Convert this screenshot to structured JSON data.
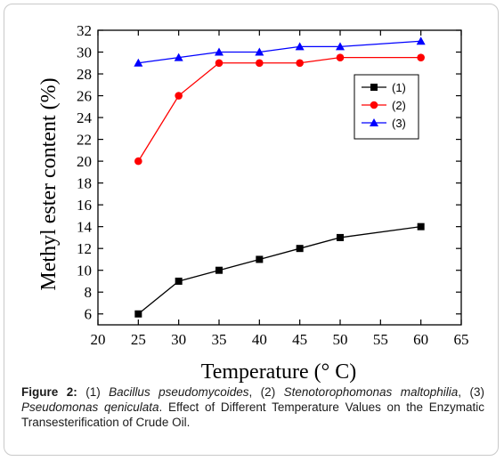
{
  "chart_data": {
    "type": "line",
    "xlabel": "Temperature (° C)",
    "ylabel": "Methyl ester content (%)",
    "xlim": [
      20,
      65
    ],
    "ylim": [
      5,
      32
    ],
    "xticks": [
      20,
      25,
      30,
      35,
      40,
      45,
      50,
      55,
      60,
      65
    ],
    "yticks": [
      6,
      8,
      10,
      12,
      14,
      16,
      18,
      20,
      22,
      24,
      26,
      28,
      30,
      32
    ],
    "grid": false,
    "legend_position": "top-right",
    "x": [
      25,
      30,
      35,
      40,
      45,
      50,
      60
    ],
    "series": [
      {
        "name": "(1)",
        "color": "#000000",
        "marker": "square",
        "values": [
          6,
          9,
          10,
          11,
          12,
          13,
          14
        ]
      },
      {
        "name": "(2)",
        "color": "#ff0000",
        "marker": "circle",
        "values": [
          20,
          26,
          29,
          29,
          29,
          29.5,
          29.5
        ]
      },
      {
        "name": "(3)",
        "color": "#0000ff",
        "marker": "triangle",
        "values": [
          29,
          29.5,
          30,
          30,
          30.5,
          30.5,
          31
        ]
      }
    ]
  },
  "caption": {
    "figure_label": "Figure 2:",
    "n1": " (1) ",
    "species1": "Bacillus pseudomycoides",
    "n2": ", (2) ",
    "species2": "Stenotorophomonas maltophilia",
    "n3": ", (3) ",
    "species3": "Pseudomonas qeniculata",
    "rest": ". Effect of Different Temperature Values on the Enzymatic Transesterification of Crude Oil."
  }
}
